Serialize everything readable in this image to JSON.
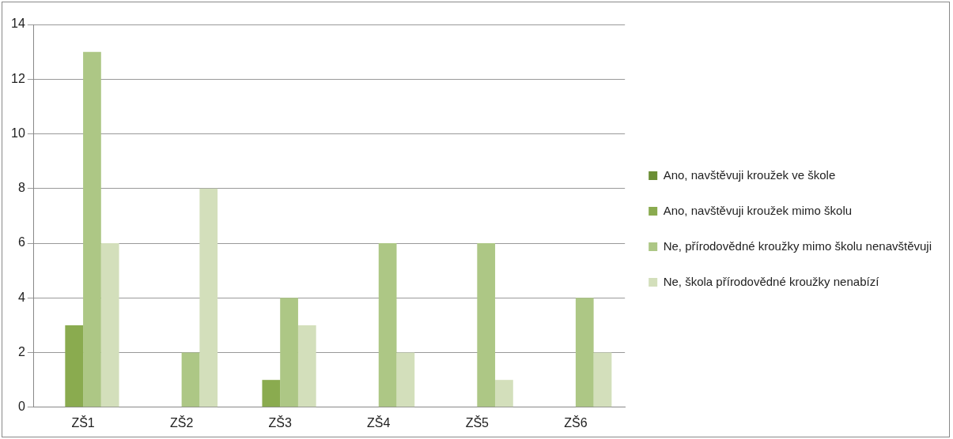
{
  "chart_data": {
    "type": "bar",
    "categories": [
      "ZŠ1",
      "ZŠ2",
      "ZŠ3",
      "ZŠ4",
      "ZŠ5",
      "ZŠ6"
    ],
    "series": [
      {
        "name": "Ano, navštěvuji kroužek ve škole",
        "color": "#6b8e35",
        "values": [
          0,
          0,
          0,
          0,
          0,
          0
        ]
      },
      {
        "name": "Ano, navštěvuji kroužek mimo školu",
        "color": "#8aab4f",
        "values": [
          3,
          0,
          1,
          0,
          0,
          0
        ]
      },
      {
        "name": "Ne, přírodovědné kroužky mimo školu nenavštěvuji",
        "color": "#adc785",
        "values": [
          13,
          2,
          4,
          6,
          6,
          4
        ]
      },
      {
        "name": "Ne, škola přírodovědné kroužky nenabízí",
        "color": "#d3dfbb",
        "values": [
          6,
          8,
          3,
          2,
          1,
          2
        ]
      }
    ],
    "ylim": [
      0,
      14
    ],
    "yticks": [
      0,
      2,
      4,
      6,
      8,
      10,
      12,
      14
    ],
    "grid": "y",
    "legend": "right"
  }
}
